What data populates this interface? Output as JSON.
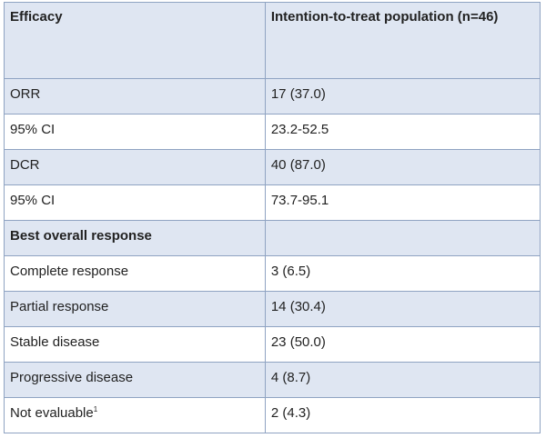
{
  "table": {
    "header": {
      "col1": "Efficacy",
      "col2": "Intention-to-treat population (n=46)"
    },
    "rows": [
      {
        "label": "ORR",
        "value": "17 (37.0)",
        "bold": false
      },
      {
        "label": "95% CI",
        "value": "23.2-52.5",
        "bold": false
      },
      {
        "label": "DCR",
        "value": "40 (87.0)",
        "bold": false
      },
      {
        "label": "95% CI",
        "value": "73.7-95.1",
        "bold": false
      },
      {
        "label": "Best overall response",
        "value": "",
        "bold": true
      },
      {
        "label": "Complete response",
        "value": "3 (6.5)",
        "bold": false
      },
      {
        "label": "Partial response",
        "value": "14 (30.4)",
        "bold": false
      },
      {
        "label": "Stable disease",
        "value": "23 (50.0)",
        "bold": false
      },
      {
        "label": "Progressive disease",
        "value": "4 (8.7)",
        "bold": false
      },
      {
        "label": "Not evaluable",
        "label_sup": "1",
        "value": "2 (4.3)",
        "bold": false
      }
    ]
  },
  "colors": {
    "border": "#8fa3c2",
    "shade": "#dfe6f2",
    "text": "#222222"
  }
}
